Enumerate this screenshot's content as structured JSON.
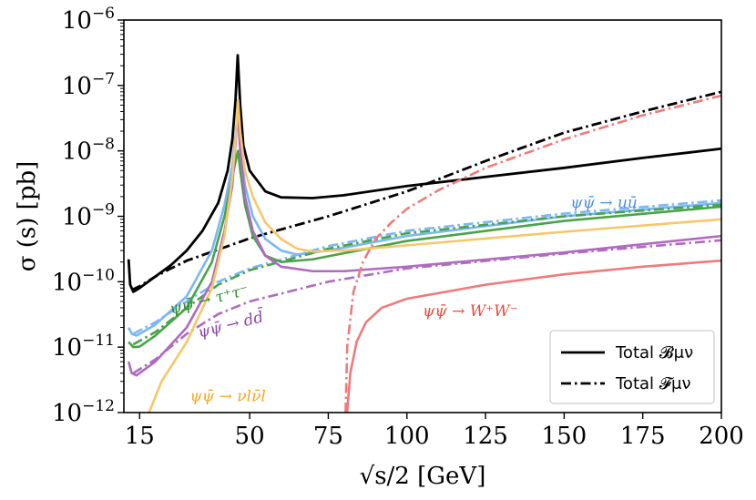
{
  "chart_data": {
    "type": "line",
    "xlabel": "√s/2  [GeV]",
    "ylabel": "σ (s)  [pb]",
    "xlim": [
      10,
      200
    ],
    "ylim": [
      1e-12,
      1e-06
    ],
    "yscale": "log",
    "grid": false,
    "x_ticks": [
      {
        "value": 15,
        "label": "15"
      },
      {
        "value": 50,
        "label": "50"
      },
      {
        "value": 75,
        "label": "75"
      },
      {
        "value": 100,
        "label": "100"
      },
      {
        "value": 125,
        "label": "125"
      },
      {
        "value": 150,
        "label": "150"
      },
      {
        "value": 175,
        "label": "175"
      },
      {
        "value": 200,
        "label": "200"
      }
    ],
    "y_ticks": [
      {
        "exp": -12,
        "base": "10",
        "sup": "−12"
      },
      {
        "exp": -11,
        "base": "10",
        "sup": "−11"
      },
      {
        "exp": -10,
        "base": "10",
        "sup": "−10"
      },
      {
        "exp": -9,
        "base": "10",
        "sup": "−9"
      },
      {
        "exp": -8,
        "base": "10",
        "sup": "−8"
      },
      {
        "exp": -7,
        "base": "10",
        "sup": "−7"
      },
      {
        "exp": -6,
        "base": "10",
        "sup": "−6"
      }
    ],
    "legend": {
      "position": "lower-right",
      "entries": [
        {
          "label": "Total 𝓑μν",
          "style": "solid",
          "color": "#000000"
        },
        {
          "label": "Total 𝓕μν",
          "style": "dashdot",
          "color": "#000000"
        }
      ]
    },
    "annotations": [
      {
        "text": "ψψ̄ → uū",
        "color": "#4a90e2",
        "x": 152,
        "y": 1.35e-09
      },
      {
        "text": "ψψ̄ → τ⁺τ⁻",
        "color": "#2e8b2e",
        "x": 25,
        "y": 3.2e-11
      },
      {
        "text": "ψψ̄ → dd̄",
        "color": "#8e44ad",
        "x": 34,
        "y": 1.4e-11
      },
      {
        "text": "ψψ̄ → W⁺W⁻",
        "color": "#e74c3c",
        "x": 105,
        "y": 3e-11
      },
      {
        "text": "ψψ̄ → νlν̄l",
        "color": "#f5a623",
        "x": 31,
        "y": 1.5e-12
      }
    ],
    "series": [
      {
        "name": "Total 𝓑μν",
        "style": "solid",
        "color": "#000000",
        "width": 2.8,
        "points": [
          [
            11.5,
            2.2e-10
          ],
          [
            12,
            9e-11
          ],
          [
            13,
            7e-11
          ],
          [
            15,
            8e-11
          ],
          [
            20,
            1.2e-10
          ],
          [
            25,
            1.8e-10
          ],
          [
            30,
            3e-10
          ],
          [
            35,
            6e-10
          ],
          [
            40,
            1.6e-09
          ],
          [
            43,
            5e-09
          ],
          [
            44.5,
            1.5e-08
          ],
          [
            45.5,
            6e-08
          ],
          [
            46.2,
            2.9e-07
          ],
          [
            47,
            5e-08
          ],
          [
            48,
            1.2e-08
          ],
          [
            50,
            5e-09
          ],
          [
            55,
            2.4e-09
          ],
          [
            60,
            1.95e-09
          ],
          [
            70,
            1.9e-09
          ],
          [
            80,
            2.1e-09
          ],
          [
            100,
            2.9e-09
          ],
          [
            125,
            4e-09
          ],
          [
            150,
            5.5e-09
          ],
          [
            175,
            7.8e-09
          ],
          [
            200,
            1.08e-08
          ]
        ]
      },
      {
        "name": "Total 𝓕μν",
        "style": "dashdot",
        "color": "#000000",
        "width": 2.8,
        "points": [
          [
            12.5,
            7.5e-11
          ],
          [
            15,
            8.5e-11
          ],
          [
            20,
            1.2e-10
          ],
          [
            25,
            1.6e-10
          ],
          [
            30,
            2.1e-10
          ],
          [
            40,
            3.1e-10
          ],
          [
            50,
            4.6e-10
          ],
          [
            60,
            6.3e-10
          ],
          [
            75,
            1e-09
          ],
          [
            100,
            2.4e-09
          ],
          [
            125,
            7e-09
          ],
          [
            150,
            1.9e-08
          ],
          [
            175,
            4e-08
          ],
          [
            200,
            8e-08
          ]
        ]
      },
      {
        "name": "uū (B)",
        "style": "solid",
        "color": "#7ab8f5",
        "width": 2.6,
        "points": [
          [
            11.5,
            2e-11
          ],
          [
            12.5,
            1.6e-11
          ],
          [
            14,
            1.5e-11
          ],
          [
            20,
            2.2e-11
          ],
          [
            30,
            6e-11
          ],
          [
            38,
            3e-10
          ],
          [
            42,
            1.5e-09
          ],
          [
            44.5,
            6e-09
          ],
          [
            45.8,
            2.5e-08
          ],
          [
            46.3,
            4e-08
          ],
          [
            47,
            1.2e-08
          ],
          [
            48.5,
            3e-09
          ],
          [
            51,
            1e-09
          ],
          [
            55,
            4.5e-10
          ],
          [
            60,
            3e-10
          ],
          [
            65,
            2.6e-10
          ],
          [
            75,
            3e-10
          ],
          [
            100,
            5e-10
          ],
          [
            150,
            1e-09
          ],
          [
            200,
            1.6e-09
          ]
        ]
      },
      {
        "name": "uū (F)",
        "style": "dashdot",
        "color": "#7ab8f5",
        "width": 2.6,
        "points": [
          [
            13,
            1.6e-11
          ],
          [
            20,
            2.4e-11
          ],
          [
            30,
            5e-11
          ],
          [
            40,
            1e-10
          ],
          [
            50,
            1.6e-10
          ],
          [
            75,
            3.5e-10
          ],
          [
            100,
            6e-10
          ],
          [
            150,
            1.1e-09
          ],
          [
            200,
            1.75e-09
          ]
        ]
      },
      {
        "name": "τ⁺τ⁻ (B)",
        "style": "solid",
        "color": "#4aa34a",
        "width": 2.6,
        "points": [
          [
            11.5,
            1.2e-11
          ],
          [
            13,
            1e-11
          ],
          [
            15,
            1.02e-11
          ],
          [
            20,
            1.5e-11
          ],
          [
            30,
            4e-11
          ],
          [
            38,
            2e-10
          ],
          [
            42,
            1e-09
          ],
          [
            44.5,
            4e-09
          ],
          [
            45.8,
            8e-09
          ],
          [
            46.3,
            1e-08
          ],
          [
            47,
            5e-09
          ],
          [
            48.5,
            1.5e-09
          ],
          [
            51,
            5e-10
          ],
          [
            55,
            2.5e-10
          ],
          [
            60,
            2e-10
          ],
          [
            70,
            2.2e-10
          ],
          [
            100,
            4.2e-10
          ],
          [
            150,
            8.5e-10
          ],
          [
            200,
            1.4e-09
          ]
        ]
      },
      {
        "name": "τ⁺τ⁻ (F)",
        "style": "dashdot",
        "color": "#4aa34a",
        "width": 2.6,
        "points": [
          [
            13,
            1.1e-11
          ],
          [
            20,
            1.7e-11
          ],
          [
            30,
            4e-11
          ],
          [
            40,
            9e-11
          ],
          [
            50,
            1.5e-10
          ],
          [
            75,
            3.2e-10
          ],
          [
            100,
            5.5e-10
          ],
          [
            150,
            1e-09
          ],
          [
            200,
            1.5e-09
          ]
        ]
      },
      {
        "name": "dd̄ (B)",
        "style": "solid",
        "color": "#b06ac0",
        "width": 2.6,
        "points": [
          [
            11.5,
            6e-12
          ],
          [
            12.5,
            4e-12
          ],
          [
            14,
            3.7e-12
          ],
          [
            20,
            6e-12
          ],
          [
            30,
            2e-11
          ],
          [
            38,
            1e-10
          ],
          [
            42,
            6e-10
          ],
          [
            44.5,
            3e-09
          ],
          [
            45.8,
            2e-08
          ],
          [
            46.3,
            3.5e-08
          ],
          [
            47,
            1e-08
          ],
          [
            48.5,
            2e-09
          ],
          [
            51,
            6e-10
          ],
          [
            55,
            2.5e-10
          ],
          [
            60,
            1.7e-10
          ],
          [
            70,
            1.45e-10
          ],
          [
            80,
            1.45e-10
          ],
          [
            100,
            1.7e-10
          ],
          [
            150,
            2.8e-10
          ],
          [
            200,
            5e-10
          ]
        ]
      },
      {
        "name": "dd̄ (F)",
        "style": "dashdot",
        "color": "#b06ac0",
        "width": 2.6,
        "points": [
          [
            13,
            4e-12
          ],
          [
            20,
            6.5e-12
          ],
          [
            30,
            1.6e-11
          ],
          [
            40,
            3.2e-11
          ],
          [
            50,
            5e-11
          ],
          [
            75,
            1e-10
          ],
          [
            100,
            1.6e-10
          ],
          [
            150,
            2.7e-10
          ],
          [
            200,
            4.3e-10
          ]
        ]
      },
      {
        "name": "νlν̄l (B)",
        "style": "solid",
        "color": "#f8c66a",
        "width": 2.6,
        "points": [
          [
            18,
            1e-12
          ],
          [
            22,
            3e-12
          ],
          [
            30,
            1.2e-11
          ],
          [
            38,
            8e-11
          ],
          [
            42,
            5e-10
          ],
          [
            44.5,
            4e-09
          ],
          [
            45.8,
            2.2e-08
          ],
          [
            46.3,
            6e-08
          ],
          [
            47,
            2e-08
          ],
          [
            48.5,
            5e-09
          ],
          [
            51,
            2e-09
          ],
          [
            55,
            8e-10
          ],
          [
            60,
            4.5e-10
          ],
          [
            65,
            3.2e-10
          ],
          [
            70,
            2.9e-10
          ],
          [
            80,
            3e-10
          ],
          [
            100,
            3.6e-10
          ],
          [
            150,
            5.8e-10
          ],
          [
            200,
            9e-10
          ]
        ]
      },
      {
        "name": "W⁺W⁻ (B)",
        "style": "solid",
        "color": "#f07a7a",
        "width": 2.6,
        "points": [
          [
            81,
            1e-12
          ],
          [
            82,
            4e-12
          ],
          [
            84,
            1.2e-11
          ],
          [
            87,
            2.4e-11
          ],
          [
            92,
            4e-11
          ],
          [
            100,
            5.5e-11
          ],
          [
            125,
            9e-11
          ],
          [
            150,
            1.3e-10
          ],
          [
            175,
            1.7e-10
          ],
          [
            200,
            2.1e-10
          ]
        ]
      },
      {
        "name": "W⁺W⁻ (F)",
        "style": "dashdot",
        "color": "#f07a7a",
        "width": 2.6,
        "points": [
          [
            80.5,
            1e-12
          ],
          [
            81,
            1e-11
          ],
          [
            83,
            7e-11
          ],
          [
            86,
            2e-10
          ],
          [
            90,
            4.5e-10
          ],
          [
            95,
            8e-10
          ],
          [
            100,
            1.3e-09
          ],
          [
            110,
            2.5e-09
          ],
          [
            125,
            5.5e-09
          ],
          [
            150,
            1.5e-08
          ],
          [
            175,
            3.5e-08
          ],
          [
            200,
            7e-08
          ]
        ]
      }
    ]
  }
}
